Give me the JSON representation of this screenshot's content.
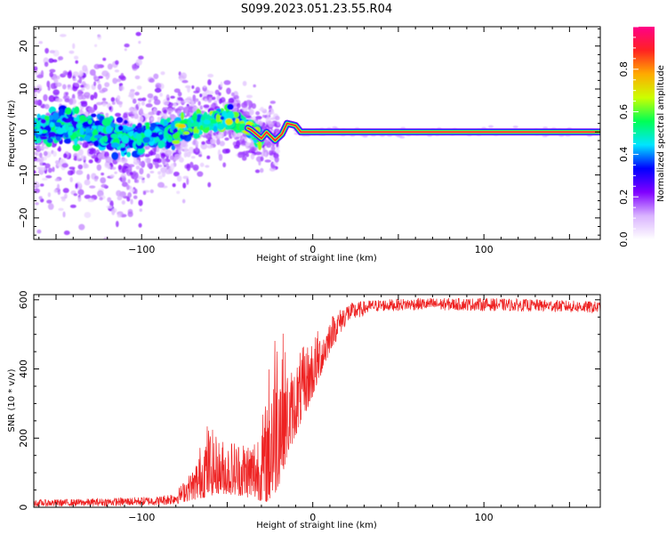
{
  "figure": {
    "title": "S099.2023.051.23.55.R04"
  },
  "chart_data": [
    {
      "type": "heatmap",
      "xlabel": "Height of straight line (km)",
      "ylabel": "Frequency (Hz)",
      "xlim": [
        -163,
        168
      ],
      "ylim": [
        -25,
        24.5
      ],
      "xticks": [
        -100,
        0,
        100
      ],
      "yticks": [
        -20,
        -10,
        0,
        10,
        20
      ],
      "colorbar": {
        "label": "Normalized spectral amplitude",
        "range": [
          0,
          1
        ],
        "ticks": [
          0.0,
          0.2,
          0.4,
          0.6,
          0.8
        ],
        "colors": [
          "#ffffff",
          "#d9b3ff",
          "#8000ff",
          "#0000ff",
          "#00e5ff",
          "#00ff55",
          "#ccff00",
          "#ffaa00",
          "#ff2222",
          "#ff0088"
        ]
      },
      "centerline": [
        {
          "x": -163,
          "f": 0.5
        },
        {
          "x": -140,
          "f": 1.0
        },
        {
          "x": -120,
          "f": -0.5
        },
        {
          "x": -100,
          "f": -1.5
        },
        {
          "x": -80,
          "f": 0.5
        },
        {
          "x": -65,
          "f": 2.5
        },
        {
          "x": -48,
          "f": 3.0
        },
        {
          "x": -36,
          "f": 0.5
        },
        {
          "x": -30,
          "f": -1.5
        },
        {
          "x": -27,
          "f": 0.0
        },
        {
          "x": -22,
          "f": -2.0
        },
        {
          "x": -18,
          "f": -0.5
        },
        {
          "x": -15,
          "f": 2.0
        },
        {
          "x": -10,
          "f": 1.5
        },
        {
          "x": -7,
          "f": 0.0
        },
        {
          "x": 168,
          "f": 0.0
        }
      ]
    },
    {
      "type": "line",
      "xlabel": "Height of straight line (km)",
      "ylabel": "SNR (10 * v/v)",
      "xlim": [
        -163,
        168
      ],
      "ylim": [
        0,
        615
      ],
      "xticks": [
        -100,
        0,
        100
      ],
      "yticks": [
        0,
        200,
        400,
        600
      ],
      "series_color": "#ee2222",
      "envelope": [
        {
          "x": -163,
          "lo": 2,
          "hi": 22
        },
        {
          "x": -130,
          "lo": 3,
          "hi": 25
        },
        {
          "x": -90,
          "lo": 5,
          "hi": 32
        },
        {
          "x": -80,
          "lo": 8,
          "hi": 45
        },
        {
          "x": -70,
          "lo": 20,
          "hi": 110
        },
        {
          "x": -62,
          "lo": 30,
          "hi": 250
        },
        {
          "x": -55,
          "lo": 40,
          "hi": 200
        },
        {
          "x": -45,
          "lo": 35,
          "hi": 200
        },
        {
          "x": -35,
          "lo": 25,
          "hi": 210
        },
        {
          "x": -28,
          "lo": 15,
          "hi": 290
        },
        {
          "x": -24,
          "lo": 10,
          "hi": 520
        },
        {
          "x": -20,
          "lo": 60,
          "hi": 610
        },
        {
          "x": -14,
          "lo": 160,
          "hi": 390
        },
        {
          "x": -8,
          "lo": 230,
          "hi": 450
        },
        {
          "x": 0,
          "lo": 320,
          "hi": 500
        },
        {
          "x": 10,
          "lo": 450,
          "hi": 550
        },
        {
          "x": 20,
          "lo": 530,
          "hi": 590
        },
        {
          "x": 35,
          "lo": 565,
          "hi": 600
        },
        {
          "x": 60,
          "lo": 570,
          "hi": 605
        },
        {
          "x": 100,
          "lo": 568,
          "hi": 605
        },
        {
          "x": 140,
          "lo": 565,
          "hi": 600
        },
        {
          "x": 168,
          "lo": 560,
          "hi": 595
        }
      ]
    }
  ]
}
